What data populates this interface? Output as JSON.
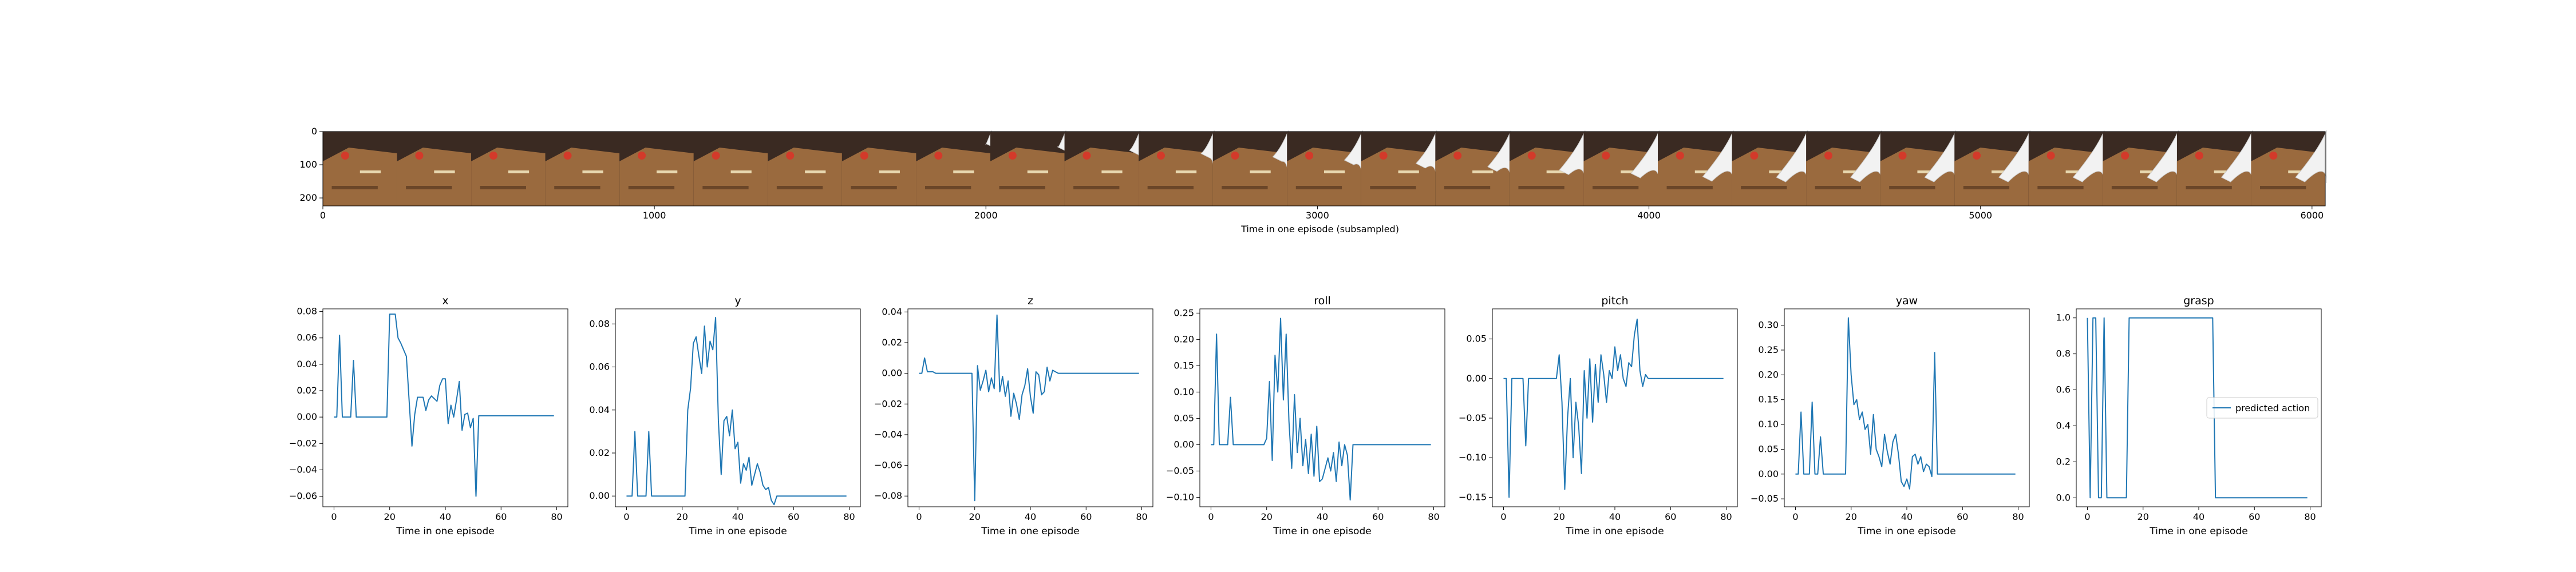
{
  "film_strip": {
    "xlabel": "Time in one episode (subsampled)",
    "x_ticks": [
      "0",
      "1000",
      "2000",
      "3000",
      "4000",
      "5000",
      "6000"
    ],
    "x_range": [
      0,
      6040
    ],
    "y_ticks": [
      "0",
      "100",
      "200"
    ],
    "y_range": [
      0,
      224
    ],
    "frames": 27,
    "colors": {
      "table": "#9a6a3e",
      "wall": "#3a2a22",
      "robot": "#f2f2f2",
      "object": "#d33a2a"
    }
  },
  "chart_data": [
    {
      "type": "line",
      "title": "x",
      "xlabel": "Time in one episode",
      "ylabel": "",
      "xlim": [
        -4,
        84
      ],
      "ylim": [
        -0.068,
        0.082
      ],
      "x_ticks": [
        0,
        20,
        40,
        60,
        80
      ],
      "y_ticks": [
        -0.06,
        -0.04,
        -0.02,
        0.0,
        0.02,
        0.04,
        0.06,
        0.08
      ],
      "y_tick_labels": [
        "−0.06",
        "−0.04",
        "−0.02",
        "0.00",
        "0.02",
        "0.04",
        "0.06",
        "0.08"
      ],
      "series": [
        {
          "color": "#1f77b4",
          "values": [
            0,
            0,
            0.062,
            0,
            0,
            0,
            0,
            0.043,
            0,
            0,
            0,
            0,
            0,
            0,
            0,
            0,
            0,
            0,
            0,
            0,
            0.078,
            0.078,
            0.078,
            0.06,
            0.056,
            0.051,
            0.046,
            0.012,
            -0.022,
            0.002,
            0.015,
            0.015,
            0.015,
            0.005,
            0.013,
            0.016,
            0.014,
            0.012,
            0.024,
            0.029,
            0.029,
            -0.005,
            0.009,
            0,
            0.013,
            0.027,
            -0.01,
            0.002,
            0.003,
            -0.008,
            -0.001,
            -0.06,
            0.001,
            0.001,
            0.001,
            0.001,
            0.001,
            0.001,
            0.001,
            0.001,
            0.001,
            0.001,
            0.001,
            0.001,
            0.001,
            0.001,
            0.001,
            0.001,
            0.001,
            0.001,
            0.001,
            0.001,
            0.001,
            0.001,
            0.001,
            0.001,
            0.001,
            0.001,
            0.001,
            0.001
          ]
        }
      ]
    },
    {
      "type": "line",
      "title": "y",
      "xlabel": "Time in one episode",
      "ylabel": "",
      "xlim": [
        -4,
        84
      ],
      "ylim": [
        -0.005,
        0.087
      ],
      "x_ticks": [
        0,
        20,
        40,
        60,
        80
      ],
      "y_ticks": [
        0.0,
        0.02,
        0.04,
        0.06,
        0.08
      ],
      "y_tick_labels": [
        "0.00",
        "0.02",
        "0.04",
        "0.06",
        "0.08"
      ],
      "series": [
        {
          "color": "#1f77b4",
          "values": [
            0,
            0,
            0,
            0.03,
            0,
            0,
            0,
            0,
            0.03,
            0,
            0,
            0,
            0,
            0,
            0,
            0,
            0,
            0,
            0,
            0,
            0,
            0,
            0.04,
            0.05,
            0.071,
            0.074,
            0.065,
            0.057,
            0.079,
            0.06,
            0.072,
            0.068,
            0.083,
            0.035,
            0.01,
            0.035,
            0.037,
            0.028,
            0.04,
            0.022,
            0.025,
            0.006,
            0.015,
            0.012,
            0.018,
            0.005,
            0.01,
            0.015,
            0.011,
            0.005,
            0.003,
            0.004,
            -0.002,
            -0.004,
            0,
            0,
            0,
            0,
            0,
            0,
            0,
            0,
            0,
            0,
            0,
            0,
            0,
            0,
            0,
            0,
            0,
            0,
            0,
            0,
            0,
            0,
            0,
            0,
            0,
            0
          ]
        }
      ]
    },
    {
      "type": "line",
      "title": "z",
      "xlabel": "Time in one episode",
      "ylabel": "",
      "xlim": [
        -4,
        84
      ],
      "ylim": [
        -0.087,
        0.042
      ],
      "x_ticks": [
        0,
        20,
        40,
        60,
        80
      ],
      "y_ticks": [
        -0.08,
        -0.06,
        -0.04,
        -0.02,
        0.0,
        0.02,
        0.04
      ],
      "y_tick_labels": [
        "−0.08",
        "−0.06",
        "−0.04",
        "−0.02",
        "0.00",
        "0.02",
        "0.04"
      ],
      "series": [
        {
          "color": "#1f77b4",
          "values": [
            0,
            0,
            0.01,
            0.001,
            0.001,
            0.001,
            0,
            0,
            0,
            0,
            0,
            0,
            0,
            0,
            0,
            0,
            0,
            0,
            0,
            0,
            -0.083,
            0.005,
            -0.011,
            -0.005,
            0.002,
            -0.012,
            -0.003,
            -0.01,
            0.038,
            -0.012,
            -0.002,
            -0.015,
            -0.005,
            -0.028,
            -0.013,
            -0.02,
            -0.03,
            -0.014,
            -0.008,
            0.003,
            -0.015,
            -0.026,
            0.001,
            -0.001,
            -0.014,
            -0.012,
            0.004,
            -0.005,
            0.002,
            0.001,
            0,
            0,
            0,
            0,
            0,
            0,
            0,
            0,
            0,
            0,
            0,
            0,
            0,
            0,
            0,
            0,
            0,
            0,
            0,
            0,
            0,
            0,
            0,
            0,
            0,
            0,
            0,
            0,
            0,
            0
          ]
        }
      ]
    },
    {
      "type": "line",
      "title": "roll",
      "xlabel": "Time in one episode",
      "ylabel": "",
      "xlim": [
        -4,
        84
      ],
      "ylim": [
        -0.118,
        0.258
      ],
      "x_ticks": [
        0,
        20,
        40,
        60,
        80
      ],
      "y_ticks": [
        -0.1,
        -0.05,
        0.0,
        0.05,
        0.1,
        0.15,
        0.2,
        0.25
      ],
      "y_tick_labels": [
        "−0.10",
        "−0.05",
        "0.00",
        "0.05",
        "0.10",
        "0.15",
        "0.20",
        "0.25"
      ],
      "series": [
        {
          "color": "#1f77b4",
          "values": [
            0,
            0,
            0.21,
            0,
            0,
            0,
            0,
            0.09,
            0,
            0,
            0,
            0,
            0,
            0,
            0,
            0,
            0,
            0,
            0,
            0,
            0.012,
            0.12,
            -0.03,
            0.17,
            0.1,
            0.24,
            0.085,
            0.21,
            0.045,
            -0.045,
            0.095,
            -0.015,
            0.05,
            -0.04,
            0.01,
            -0.055,
            0.02,
            -0.06,
            0.035,
            -0.07,
            -0.065,
            -0.045,
            -0.025,
            -0.05,
            -0.015,
            -0.07,
            0.005,
            -0.04,
            0,
            -0.02,
            -0.105,
            0,
            0,
            0,
            0,
            0,
            0,
            0,
            0,
            0,
            0,
            0,
            0,
            0,
            0,
            0,
            0,
            0,
            0,
            0,
            0,
            0,
            0,
            0,
            0,
            0,
            0,
            0,
            0,
            0
          ]
        }
      ]
    },
    {
      "type": "line",
      "title": "pitch",
      "xlabel": "Time in one episode",
      "ylabel": "",
      "xlim": [
        -4,
        84
      ],
      "ylim": [
        -0.162,
        0.088
      ],
      "x_ticks": [
        0,
        20,
        40,
        60,
        80
      ],
      "y_ticks": [
        -0.15,
        -0.1,
        -0.05,
        0.0,
        0.05
      ],
      "y_tick_labels": [
        "−0.15",
        "−0.10",
        "−0.05",
        "0.00",
        "0.05"
      ],
      "series": [
        {
          "color": "#1f77b4",
          "values": [
            0,
            0,
            -0.15,
            0,
            0,
            0,
            0,
            0,
            -0.085,
            0,
            0,
            0,
            0,
            0,
            0,
            0,
            0,
            0,
            0,
            0,
            0.03,
            -0.03,
            -0.14,
            -0.05,
            0,
            -0.1,
            -0.03,
            -0.06,
            -0.12,
            0.01,
            -0.05,
            0.025,
            -0.055,
            0.018,
            -0.03,
            0.03,
            0.005,
            -0.03,
            0.01,
            0,
            0.04,
            0.01,
            0.03,
            0,
            -0.01,
            0.02,
            0.015,
            0.055,
            0.075,
            0.01,
            -0.01,
            0.005,
            0,
            0,
            0,
            0,
            0,
            0,
            0,
            0,
            0,
            0,
            0,
            0,
            0,
            0,
            0,
            0,
            0,
            0,
            0,
            0,
            0,
            0,
            0,
            0,
            0,
            0,
            0,
            0
          ]
        }
      ]
    },
    {
      "type": "line",
      "title": "yaw",
      "xlabel": "Time in one episode",
      "ylabel": "",
      "xlim": [
        -4,
        84
      ],
      "ylim": [
        -0.066,
        0.333
      ],
      "x_ticks": [
        0,
        20,
        40,
        60,
        80
      ],
      "y_ticks": [
        -0.05,
        0.0,
        0.05,
        0.1,
        0.15,
        0.2,
        0.25,
        0.3
      ],
      "y_tick_labels": [
        "−0.05",
        "0.00",
        "0.05",
        "0.10",
        "0.15",
        "0.20",
        "0.25",
        "0.30"
      ],
      "series": [
        {
          "color": "#1f77b4",
          "values": [
            0,
            0,
            0.125,
            0,
            0,
            0,
            0.145,
            0,
            0,
            0.075,
            0,
            0,
            0,
            0,
            0,
            0,
            0,
            0,
            0,
            0.315,
            0.2,
            0.14,
            0.15,
            0.11,
            0.125,
            0.09,
            0.1,
            0.04,
            0.12,
            0.05,
            0.035,
            0.015,
            0.08,
            0.045,
            0.02,
            0.065,
            0.08,
            0.04,
            -0.015,
            -0.025,
            -0.01,
            -0.03,
            0.035,
            0.04,
            0.02,
            0.035,
            0.005,
            0.02,
            0.015,
            -0.005,
            0.245,
            0,
            0,
            0,
            0,
            0,
            0,
            0,
            0,
            0,
            0,
            0,
            0,
            0,
            0,
            0,
            0,
            0,
            0,
            0,
            0,
            0,
            0,
            0,
            0,
            0,
            0,
            0,
            0,
            0
          ]
        }
      ]
    },
    {
      "type": "line",
      "title": "grasp",
      "xlabel": "Time in one episode",
      "ylabel": "",
      "xlim": [
        -4,
        84
      ],
      "ylim": [
        -0.05,
        1.05
      ],
      "x_ticks": [
        0,
        20,
        40,
        60,
        80
      ],
      "y_ticks": [
        0.0,
        0.2,
        0.4,
        0.6,
        0.8,
        1.0
      ],
      "y_tick_labels": [
        "0.0",
        "0.2",
        "0.4",
        "0.6",
        "0.8",
        "1.0"
      ],
      "legend": {
        "placement": "right",
        "entries": [
          "predicted action"
        ]
      },
      "series": [
        {
          "name": "predicted action",
          "color": "#1f77b4",
          "values": [
            1,
            0,
            1,
            1,
            0,
            0,
            1,
            0,
            0,
            0,
            0,
            0,
            0,
            0,
            0,
            1,
            1,
            1,
            1,
            1,
            1,
            1,
            1,
            1,
            1,
            1,
            1,
            1,
            1,
            1,
            1,
            1,
            1,
            1,
            1,
            1,
            1,
            1,
            1,
            1,
            1,
            1,
            1,
            1,
            1,
            1,
            0,
            0,
            0,
            0,
            0,
            0,
            0,
            0,
            0,
            0,
            0,
            0,
            0,
            0,
            0,
            0,
            0,
            0,
            0,
            0,
            0,
            0,
            0,
            0,
            0,
            0,
            0,
            0,
            0,
            0,
            0,
            0,
            0,
            0
          ]
        }
      ]
    }
  ]
}
